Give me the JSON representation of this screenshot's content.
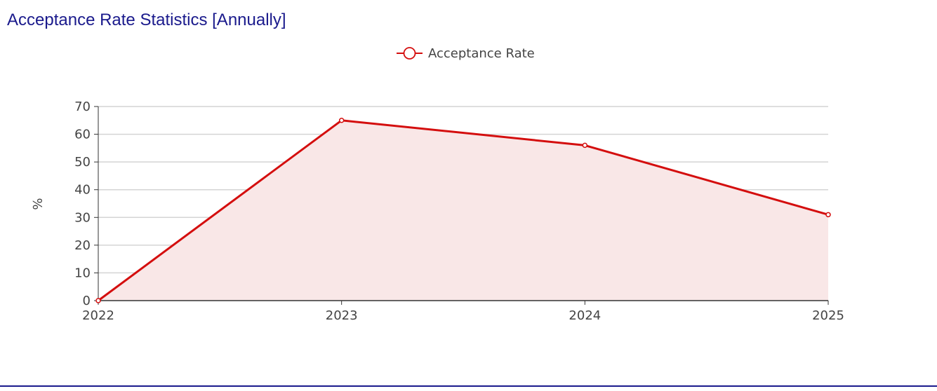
{
  "page": {
    "title": "Acceptance Rate Statistics [Annually]"
  },
  "chart_data": {
    "type": "area",
    "categories": [
      "2022",
      "2023",
      "2024",
      "2025"
    ],
    "series": [
      {
        "name": "Acceptance Rate",
        "values": [
          0,
          65,
          56,
          31
        ],
        "color": "#d40e0e",
        "fill_color": "#f9e7e7"
      }
    ],
    "ylabel": "%",
    "ylim": [
      0,
      70
    ],
    "yticks": [
      0,
      10,
      20,
      30,
      40,
      50,
      60,
      70
    ],
    "grid": true,
    "legend_position": "top-center",
    "legend_icon": "circle-line-icon"
  },
  "colors": {
    "title": "#1a1a8c",
    "axis": "#333333",
    "grid": "#d4d4d4",
    "bottom_rule": "#1a1a8c"
  }
}
